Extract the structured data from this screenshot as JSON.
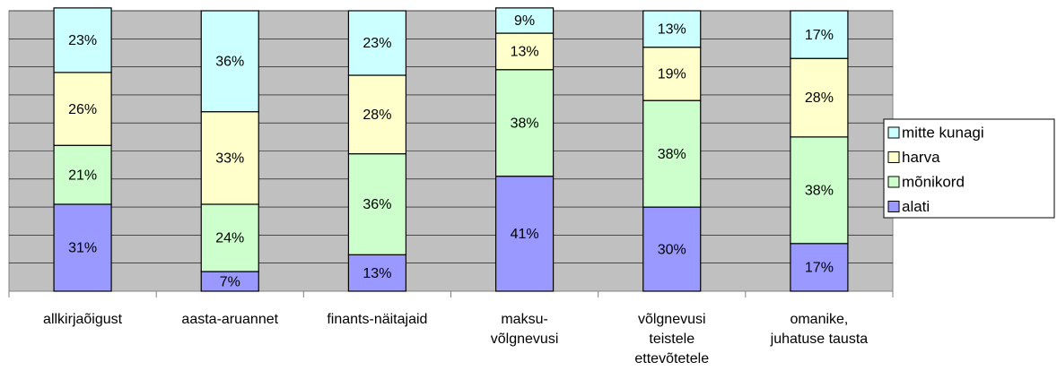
{
  "chart_data": {
    "type": "stacked_bar",
    "categories": [
      "allkirjaõigust",
      "aasta-aruannet",
      "finants-näitajaid",
      "maksu-\nvõlgnevusi",
      "võlgnevusi\nteistele\nettevõtetele",
      "omanike,\njuhatuse tausta"
    ],
    "series": [
      {
        "name": "alati",
        "color": "#9999ff",
        "values": [
          31,
          7,
          13,
          41,
          30,
          17
        ],
        "value_labels": [
          "31%",
          "7%",
          "13%",
          "41%",
          "30%",
          "17%"
        ]
      },
      {
        "name": "mõnikord",
        "color": "#ccffcc",
        "values": [
          21,
          24,
          36,
          38,
          38,
          38
        ],
        "value_labels": [
          "21%",
          "24%",
          "36%",
          "38%",
          "38%",
          "38%"
        ]
      },
      {
        "name": "harva",
        "color": "#ffffcc",
        "values": [
          26,
          33,
          28,
          13,
          19,
          28
        ],
        "value_labels": [
          "26%",
          "33%",
          "28%",
          "13%",
          "19%",
          "28%"
        ]
      },
      {
        "name": "mitte kunagi",
        "color": "#ccffff",
        "values": [
          23,
          36,
          23,
          9,
          13,
          17
        ],
        "value_labels": [
          "23%",
          "36%",
          "23%",
          "9%",
          "13%",
          "17%"
        ]
      }
    ],
    "ylim": [
      0,
      100
    ],
    "yticks": [
      0,
      10,
      20,
      30,
      40,
      50,
      60,
      70,
      80,
      90,
      100
    ],
    "grid": true,
    "legend": "right"
  }
}
